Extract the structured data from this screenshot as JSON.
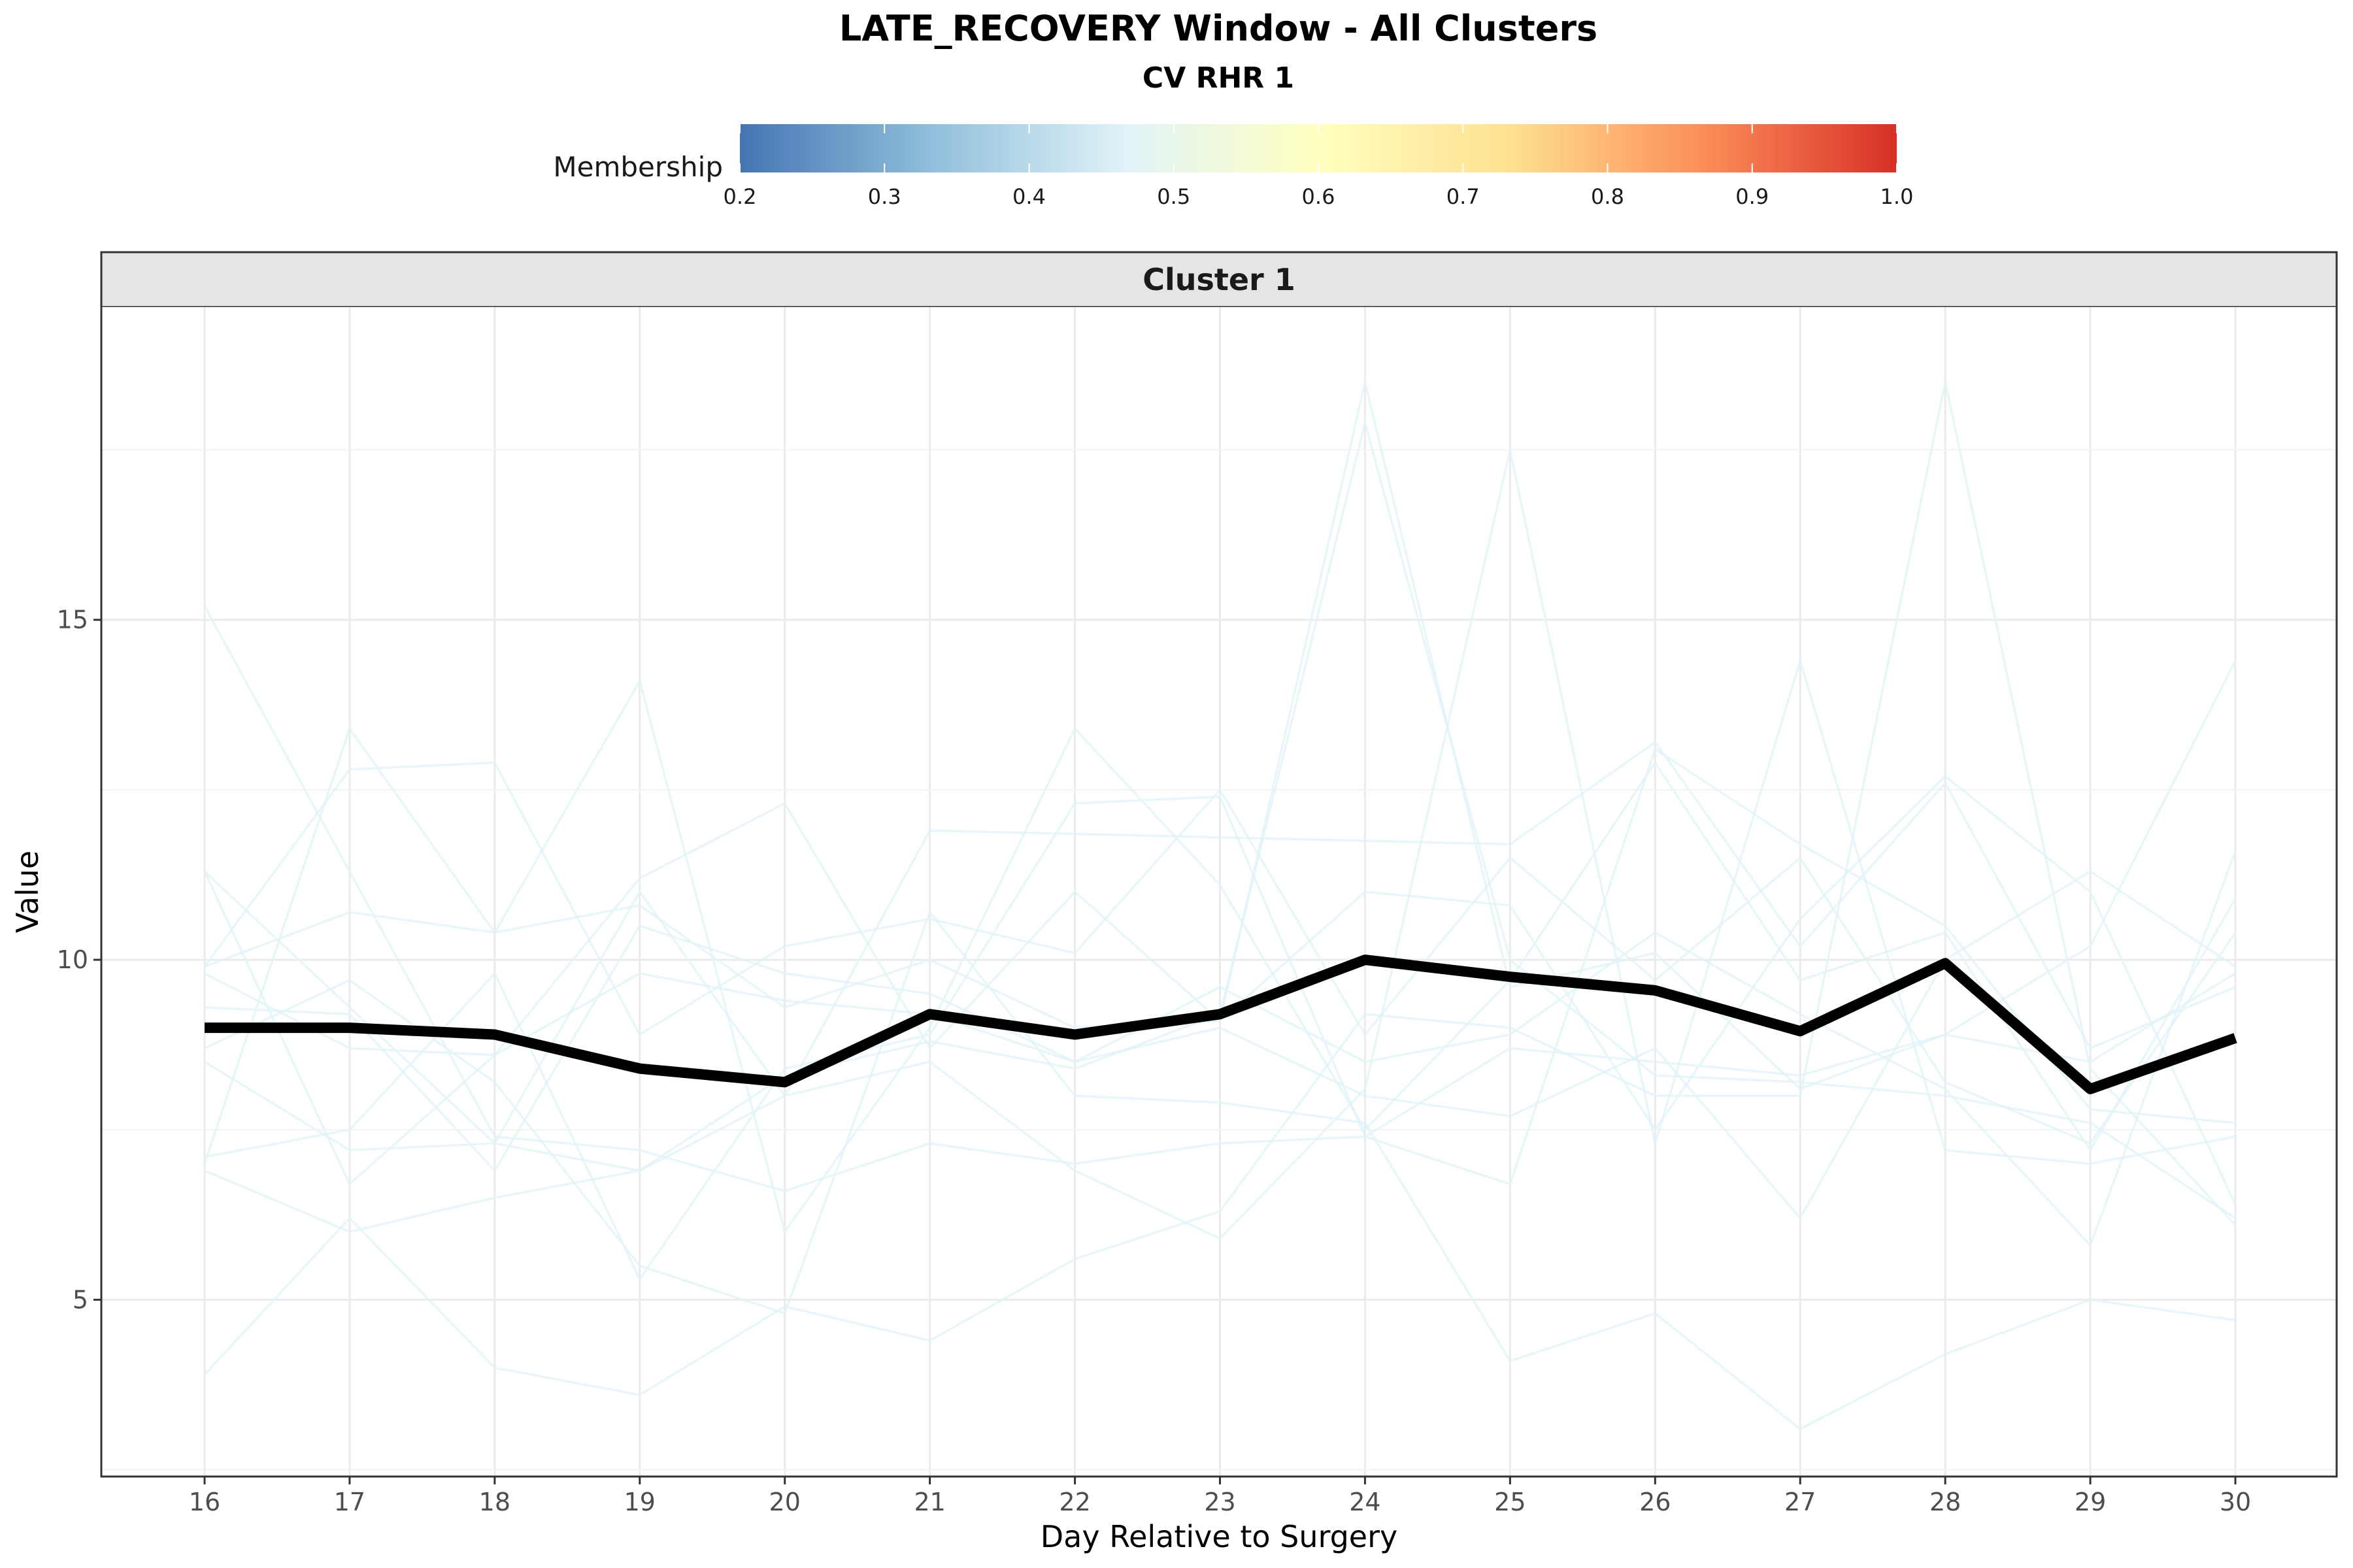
{
  "chart_data": {
    "type": "line",
    "title": "LATE_RECOVERY Window - All Clusters",
    "subtitle": "CV RHR 1",
    "facet_label": "Cluster 1",
    "xlabel": "Day Relative to Surgery",
    "ylabel": "Value",
    "x": [
      16,
      17,
      18,
      19,
      20,
      21,
      22,
      23,
      24,
      25,
      26,
      27,
      28,
      29,
      30
    ],
    "x_ticks": [
      "16",
      "17",
      "18",
      "19",
      "20",
      "21",
      "22",
      "23",
      "24",
      "25",
      "26",
      "27",
      "28",
      "29",
      "30"
    ],
    "ylim": [
      2.4,
      19.6
    ],
    "y_ticks": [
      5,
      10,
      15
    ],
    "y_tick_labels": [
      "5",
      "10",
      "15"
    ],
    "grid": true,
    "legend": {
      "title": "Membership",
      "position": "top",
      "range": [
        0.2,
        1.0
      ],
      "tick_labels": [
        "0.2",
        "0.3",
        "0.4",
        "0.5",
        "0.6",
        "0.7",
        "0.8",
        "0.9",
        "1.0"
      ],
      "colors": [
        "#4575b4",
        "#91bfdb",
        "#e0f3f8",
        "#ffffbf",
        "#fee090",
        "#fc8d59",
        "#d73027"
      ]
    },
    "centroid": {
      "color": "#000000",
      "values": [
        9.0,
        9.0,
        8.9,
        8.4,
        8.2,
        9.2,
        8.9,
        9.2,
        10.0,
        9.75,
        9.55,
        8.95,
        9.95,
        8.1,
        8.85
      ]
    },
    "member_color": "#e0f3f8",
    "members": [
      {
        "membership": 0.5,
        "values": [
          15.2,
          11.3,
          7.4,
          7.2,
          6.6,
          7.3,
          7.0,
          7.3,
          7.4,
          8.7,
          8.5,
          8.3,
          8.9,
          8.5,
          9.8
        ]
      },
      {
        "membership": 0.5,
        "values": [
          11.3,
          9.3,
          7.3,
          6.9,
          8.0,
          11.9,
          11.85,
          11.8,
          11.75,
          11.7,
          13.2,
          10.2,
          12.6,
          8.7,
          9.6
        ]
      },
      {
        "membership": 0.5,
        "values": [
          9.9,
          12.8,
          12.9,
          8.9,
          10.2,
          10.6,
          10.1,
          12.5,
          8.9,
          11.5,
          9.7,
          11.5,
          8.2,
          7.3,
          10.4
        ]
      },
      {
        "membership": 0.5,
        "values": [
          9.9,
          10.7,
          10.4,
          14.1,
          6.0,
          9.0,
          13.4,
          11.1,
          7.5,
          9.7,
          12.9,
          9.7,
          10.4,
          7.2,
          10.9
        ]
      },
      {
        "membership": 0.5,
        "values": [
          7.0,
          13.4,
          10.4,
          10.8,
          9.3,
          10.0,
          9.0,
          9.1,
          18.5,
          9.6,
          10.1,
          8.1,
          8.9,
          10.2,
          14.4
        ]
      },
      {
        "membership": 0.5,
        "values": [
          6.9,
          6.0,
          6.5,
          6.9,
          8.3,
          8.8,
          8.4,
          9.2,
          17.9,
          10.0,
          8.3,
          8.2,
          8.0,
          7.6,
          6.2
        ]
      },
      {
        "membership": 0.5,
        "values": [
          3.9,
          6.2,
          4.0,
          3.6,
          4.9,
          4.4,
          5.6,
          6.3,
          9.2,
          9.0,
          8.0,
          8.0,
          18.5,
          8.4,
          6.1
        ]
      },
      {
        "membership": 0.5,
        "values": [
          8.5,
          7.2,
          7.3,
          11.0,
          8.0,
          8.5,
          6.9,
          5.9,
          8.1,
          17.5,
          7.3,
          14.4,
          7.2,
          7.0,
          7.4
        ]
      },
      {
        "membership": 0.5,
        "values": [
          9.3,
          9.2,
          6.9,
          10.5,
          9.8,
          9.5,
          8.5,
          9.6,
          8.5,
          8.9,
          10.4,
          9.2,
          8.1,
          5.8,
          11.6
        ]
      },
      {
        "membership": 0.5,
        "values": [
          7.1,
          7.5,
          9.8,
          5.3,
          8.4,
          8.9,
          12.3,
          12.4,
          7.4,
          6.7,
          13.1,
          11.7,
          10.5,
          7.8,
          7.6
        ]
      },
      {
        "membership": 0.5,
        "values": [
          8.7,
          9.7,
          8.2,
          5.5,
          4.8,
          10.7,
          8.0,
          7.9,
          7.6,
          4.1,
          4.8,
          3.1,
          4.2,
          5.0,
          4.7
        ]
      },
      {
        "membership": 0.5,
        "values": [
          9.8,
          8.7,
          8.6,
          11.2,
          12.3,
          8.7,
          11.0,
          9.1,
          11.0,
          10.8,
          7.5,
          10.6,
          12.7,
          11.0,
          6.4
        ]
      },
      {
        "membership": 0.5,
        "values": [
          11.3,
          6.7,
          8.6,
          9.8,
          9.4,
          9.2,
          8.5,
          9.0,
          8.0,
          7.7,
          8.7,
          6.2,
          10.0,
          11.3,
          9.9
        ]
      }
    ]
  }
}
